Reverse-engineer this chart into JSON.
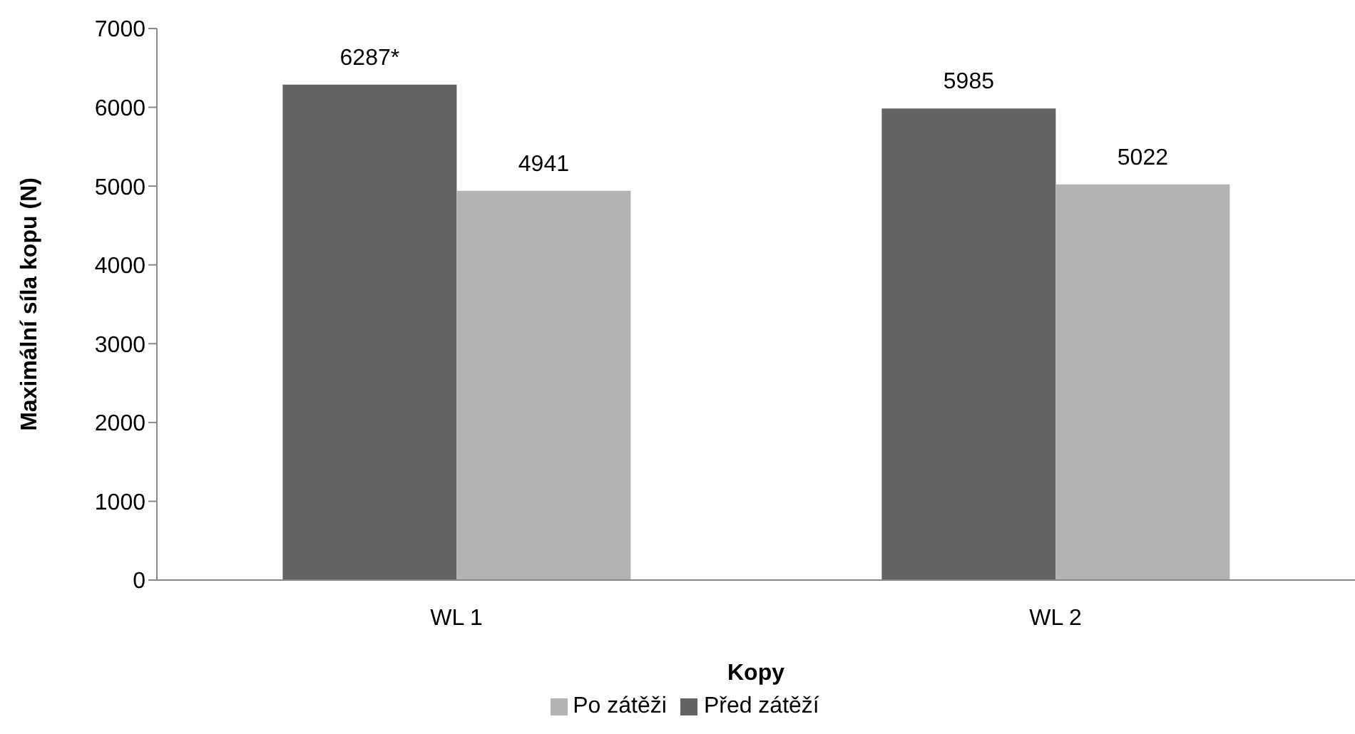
{
  "chart_data": {
    "type": "bar",
    "categories": [
      "WL 1",
      "WL 2"
    ],
    "xlabel": "Kopy",
    "ylabel": "Maximální síla kopu (N)",
    "ylim": [
      0,
      7000
    ],
    "yticks": [
      0,
      1000,
      2000,
      3000,
      4000,
      5000,
      6000,
      7000
    ],
    "grid": false,
    "legend": "bottom",
    "series": [
      {
        "name": "Před zátěží",
        "color": "#636363",
        "values": [
          6287,
          5985
        ],
        "value_labels": [
          "6287*",
          "5985"
        ]
      },
      {
        "name": "Po zátěži",
        "color": "#b3b3b3",
        "values": [
          4941,
          5022
        ],
        "value_labels": [
          "4941",
          "5022"
        ]
      }
    ]
  }
}
